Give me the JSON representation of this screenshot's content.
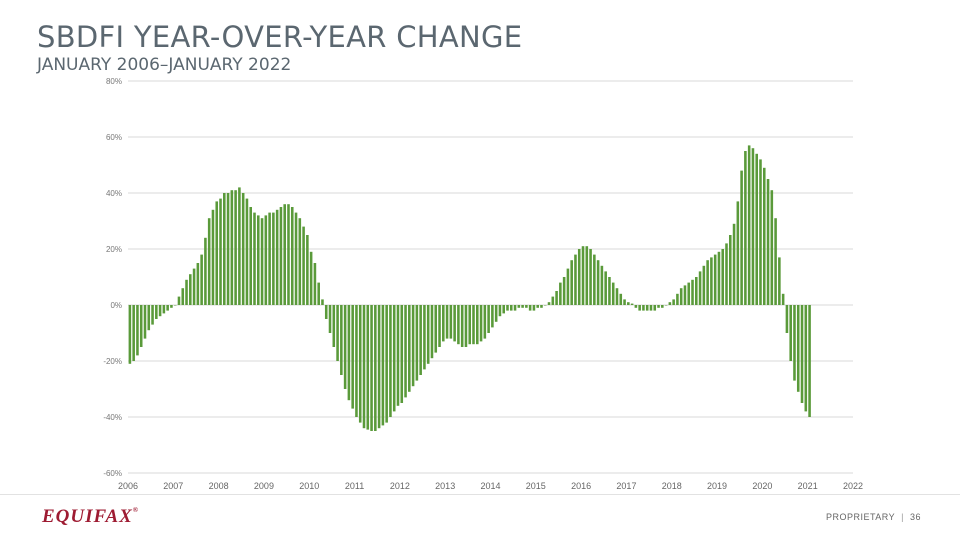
{
  "slide": {
    "title": "SBDFI YEAR-OVER-YEAR CHANGE",
    "subtitle": "JANUARY 2006–JANUARY 2022",
    "logo_text": "EQUIFAX",
    "logo_mark": "®",
    "footer_label": "PROPRIETARY",
    "footer_separator": "|",
    "page_number": "36"
  },
  "colors": {
    "bar": "#5a9a3a",
    "grid": "#d9d9d9",
    "text": "#5b6770",
    "brand": "#9e1b32"
  },
  "chart_data": {
    "type": "bar",
    "ylim": [
      -60,
      80
    ],
    "yticks": [
      -60,
      -40,
      -20,
      0,
      20,
      40,
      60,
      80
    ],
    "ytick_labels": [
      "-60%",
      "-40%",
      "-20%",
      "0%",
      "20%",
      "40%",
      "60%",
      "80%"
    ],
    "xtick_labels": [
      "2006",
      "2007",
      "2008",
      "2009",
      "2010",
      "2011",
      "2012",
      "2013",
      "2014",
      "2015",
      "2016",
      "2017",
      "2018",
      "2019",
      "2020",
      "2021",
      "2022"
    ],
    "grid": true,
    "start": "2006-01",
    "frequency": "monthly",
    "values": [
      -21,
      -20,
      -18,
      -15,
      -12,
      -9,
      -7,
      -5,
      -4,
      -3,
      -2,
      -1,
      0,
      3,
      6,
      9,
      11,
      13,
      15,
      18,
      24,
      31,
      34,
      37,
      38,
      40,
      40,
      41,
      41,
      42,
      40,
      38,
      35,
      33,
      32,
      31,
      32,
      33,
      33,
      34,
      35,
      36,
      36,
      35,
      33,
      31,
      28,
      25,
      19,
      15,
      8,
      2,
      -5,
      -10,
      -15,
      -20,
      -25,
      -30,
      -34,
      -37,
      -40,
      -42,
      -44,
      -44.5,
      -45,
      -45,
      -44,
      -43,
      -42,
      -40,
      -38,
      -36,
      -35,
      -33,
      -31,
      -29,
      -27,
      -25,
      -23,
      -21,
      -19,
      -17,
      -15,
      -13,
      -12,
      -12,
      -13,
      -14,
      -15,
      -15,
      -14,
      -14,
      -14,
      -13,
      -12,
      -10,
      -8,
      -6,
      -4,
      -3,
      -2,
      -2,
      -2,
      -1,
      -1,
      -1,
      -2,
      -2,
      -1,
      -1,
      0,
      1,
      3,
      5,
      8,
      10,
      13,
      16,
      18,
      20,
      21,
      21,
      20,
      18,
      16,
      14,
      12,
      10,
      8,
      6,
      4,
      2,
      1,
      0.5,
      -1,
      -2,
      -2,
      -2,
      -2,
      -2,
      -1,
      -1,
      0,
      1,
      2,
      4,
      6,
      7,
      8,
      9,
      10,
      12,
      14,
      16,
      17,
      18,
      19,
      20,
      22,
      25,
      29,
      37,
      48,
      55,
      57,
      56,
      54,
      52,
      49,
      45,
      41,
      31,
      17,
      4,
      -10,
      -20,
      -27,
      -31,
      -35,
      -38,
      -40
    ]
  }
}
